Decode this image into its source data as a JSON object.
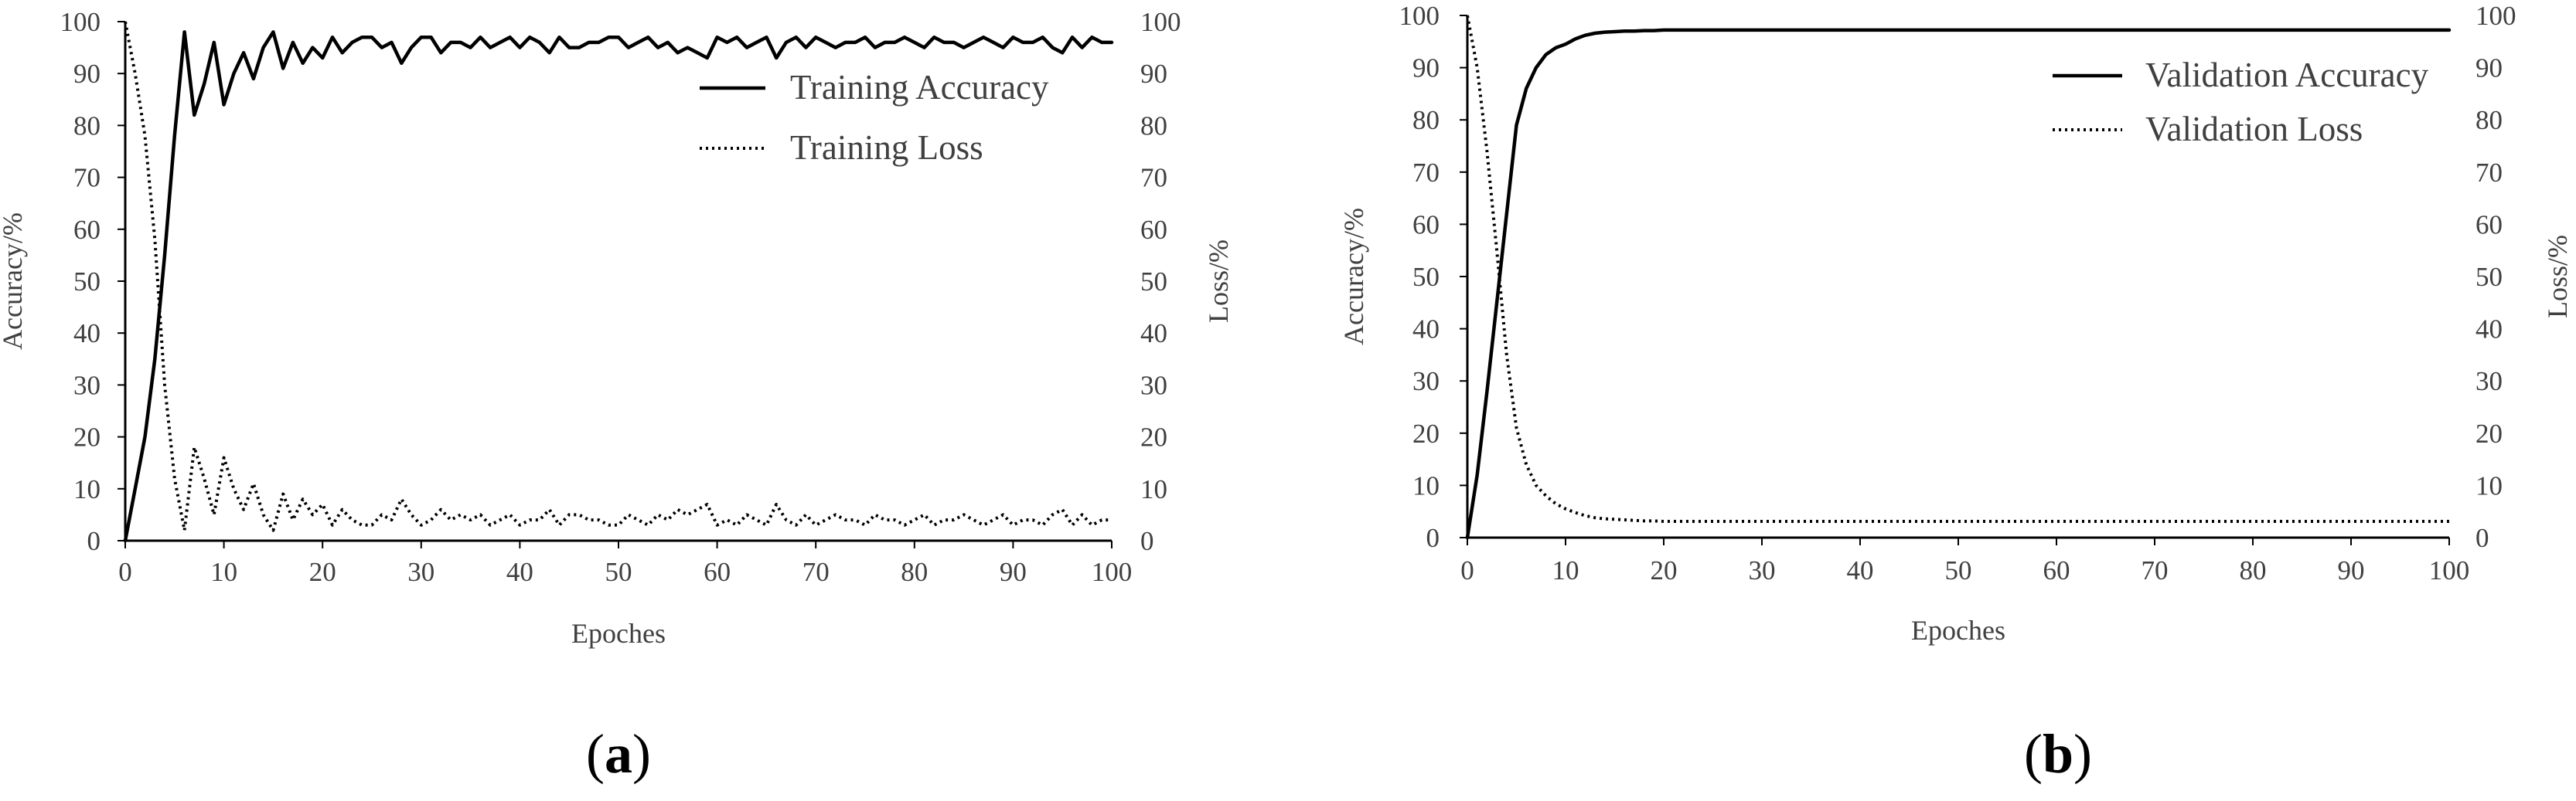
{
  "chart_data": [
    {
      "type": "line",
      "panel_label": "a",
      "xlabel": "Epoches",
      "ylabel": "Accuracy/%",
      "y2label": "Loss/%",
      "xlim": [
        0,
        100
      ],
      "ylim": [
        0,
        100
      ],
      "y2lim": [
        0,
        100
      ],
      "xticks": [
        0,
        10,
        20,
        30,
        40,
        50,
        60,
        70,
        80,
        90,
        100
      ],
      "yticks": [
        0,
        10,
        20,
        30,
        40,
        50,
        60,
        70,
        80,
        90,
        100
      ],
      "y2ticks": [
        0,
        10,
        20,
        30,
        40,
        50,
        60,
        70,
        80,
        90,
        100
      ],
      "grid": false,
      "legend_position": "top-right",
      "series": [
        {
          "name": "Training Accuracy",
          "axis": "left",
          "style": "solid",
          "x": [
            0,
            1,
            2,
            3,
            4,
            5,
            6,
            7,
            8,
            9,
            10,
            11,
            12,
            13,
            14,
            15,
            16,
            17,
            18,
            19,
            20,
            21,
            22,
            23,
            24,
            25,
            26,
            27,
            28,
            29,
            30,
            31,
            32,
            33,
            34,
            35,
            36,
            37,
            38,
            39,
            40,
            41,
            42,
            43,
            44,
            45,
            46,
            47,
            48,
            49,
            50,
            51,
            52,
            53,
            54,
            55,
            56,
            57,
            58,
            59,
            60,
            61,
            62,
            63,
            64,
            65,
            66,
            67,
            68,
            69,
            70,
            71,
            72,
            73,
            74,
            75,
            76,
            77,
            78,
            79,
            80,
            81,
            82,
            83,
            84,
            85,
            86,
            87,
            88,
            89,
            90,
            91,
            92,
            93,
            94,
            95,
            96,
            97,
            98,
            99,
            100
          ],
          "values": [
            0,
            10,
            20,
            35,
            55,
            78,
            98,
            82,
            88,
            96,
            84,
            90,
            94,
            89,
            95,
            98,
            91,
            96,
            92,
            95,
            93,
            97,
            94,
            96,
            97,
            97,
            95,
            96,
            92,
            95,
            97,
            97,
            94,
            96,
            96,
            95,
            97,
            95,
            96,
            97,
            95,
            97,
            96,
            94,
            97,
            95,
            95,
            96,
            96,
            97,
            97,
            95,
            96,
            97,
            95,
            96,
            94,
            95,
            94,
            93,
            97,
            96,
            97,
            95,
            96,
            97,
            93,
            96,
            97,
            95,
            97,
            96,
            95,
            96,
            96,
            97,
            95,
            96,
            96,
            97,
            96,
            95,
            97,
            96,
            96,
            95,
            96,
            97,
            96,
            95,
            97,
            96,
            96,
            97,
            95,
            94,
            97,
            95,
            97,
            96,
            96
          ]
        },
        {
          "name": "Training Loss",
          "axis": "right",
          "style": "dotted",
          "x": [
            0,
            1,
            2,
            3,
            4,
            5,
            6,
            7,
            8,
            9,
            10,
            11,
            12,
            13,
            14,
            15,
            16,
            17,
            18,
            19,
            20,
            21,
            22,
            23,
            24,
            25,
            26,
            27,
            28,
            29,
            30,
            31,
            32,
            33,
            34,
            35,
            36,
            37,
            38,
            39,
            40,
            41,
            42,
            43,
            44,
            45,
            46,
            47,
            48,
            49,
            50,
            51,
            52,
            53,
            54,
            55,
            56,
            57,
            58,
            59,
            60,
            61,
            62,
            63,
            64,
            65,
            66,
            67,
            68,
            69,
            70,
            71,
            72,
            73,
            74,
            75,
            76,
            77,
            78,
            79,
            80,
            81,
            82,
            83,
            84,
            85,
            86,
            87,
            88,
            89,
            90,
            91,
            92,
            93,
            94,
            95,
            96,
            97,
            98,
            99,
            100
          ],
          "values": [
            100,
            90,
            78,
            58,
            30,
            12,
            2,
            18,
            12,
            5,
            16,
            10,
            6,
            11,
            5,
            2,
            9,
            4,
            8,
            5,
            7,
            3,
            6,
            4,
            3,
            3,
            5,
            4,
            8,
            5,
            3,
            4,
            6,
            4,
            5,
            4,
            5,
            3,
            4,
            5,
            3,
            4,
            4,
            6,
            3,
            5,
            5,
            4,
            4,
            3,
            3,
            5,
            4,
            3,
            5,
            4,
            6,
            5,
            6,
            7,
            3,
            4,
            3,
            5,
            4,
            3,
            7,
            4,
            3,
            5,
            3,
            4,
            5,
            4,
            4,
            3,
            5,
            4,
            4,
            3,
            4,
            5,
            3,
            4,
            4,
            5,
            4,
            3,
            4,
            5,
            3,
            4,
            4,
            3,
            5,
            6,
            3,
            5,
            3,
            4,
            4
          ]
        }
      ]
    },
    {
      "type": "line",
      "panel_label": "b",
      "xlabel": "Epoches",
      "ylabel": "Accuracy/%",
      "y2label": "Loss/%",
      "xlim": [
        0,
        100
      ],
      "ylim": [
        0,
        100
      ],
      "y2lim": [
        0,
        100
      ],
      "xticks": [
        0,
        10,
        20,
        30,
        40,
        50,
        60,
        70,
        80,
        90,
        100
      ],
      "yticks": [
        0,
        10,
        20,
        30,
        40,
        50,
        60,
        70,
        80,
        90,
        100
      ],
      "y2ticks": [
        0,
        10,
        20,
        30,
        40,
        50,
        60,
        70,
        80,
        90,
        100
      ],
      "grid": false,
      "legend_position": "top-right",
      "series": [
        {
          "name": "Validation Accuracy",
          "axis": "left",
          "style": "solid",
          "x": [
            0,
            1,
            2,
            3,
            4,
            5,
            6,
            7,
            8,
            9,
            10,
            11,
            12,
            13,
            14,
            15,
            16,
            17,
            18,
            19,
            20,
            25,
            30,
            40,
            50,
            60,
            70,
            80,
            90,
            100
          ],
          "values": [
            0,
            12,
            28,
            45,
            62,
            79,
            86,
            90,
            92.5,
            93.8,
            94.5,
            95.5,
            96.2,
            96.6,
            96.8,
            96.9,
            97,
            97,
            97.1,
            97.1,
            97.2,
            97.2,
            97.2,
            97.2,
            97.2,
            97.2,
            97.2,
            97.2,
            97.2,
            97.2
          ]
        },
        {
          "name": "Validation Loss",
          "axis": "right",
          "style": "dotted",
          "x": [
            0,
            1,
            2,
            3,
            4,
            5,
            6,
            7,
            8,
            9,
            10,
            11,
            12,
            13,
            14,
            15,
            16,
            17,
            18,
            19,
            20,
            25,
            30,
            40,
            50,
            60,
            70,
            80,
            90,
            100
          ],
          "values": [
            100,
            90,
            74,
            55,
            35,
            21,
            14,
            10,
            8,
            6.5,
            5.5,
            4.8,
            4.2,
            3.8,
            3.6,
            3.5,
            3.4,
            3.3,
            3.2,
            3.2,
            3.1,
            3.1,
            3.1,
            3.1,
            3.1,
            3.1,
            3.1,
            3.1,
            3.1,
            3.1
          ]
        }
      ]
    }
  ]
}
